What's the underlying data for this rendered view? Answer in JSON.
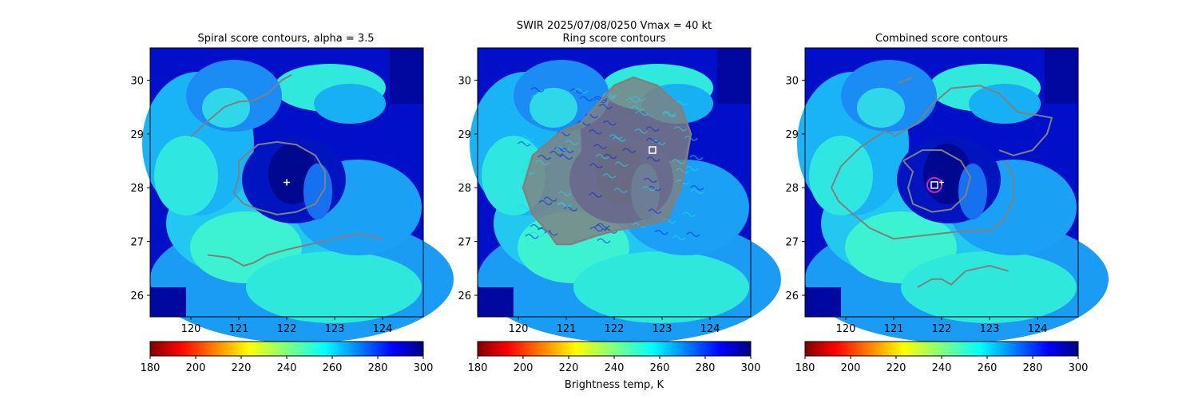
{
  "suptitle_line1": "SWIR  2025/07/08/0250    Vmax = 40 kt",
  "colorbar_label": "Brightness temp, K",
  "colors": {
    "contour": "#808080",
    "center_marker": "#ffffff",
    "circle_marker": "#cc22cc"
  },
  "chart_data": [
    {
      "type": "heatmap",
      "title": "Spiral score contours, alpha =  3.5",
      "xlim": [
        119.15,
        124.85
      ],
      "ylim": [
        25.6,
        30.6
      ],
      "x_ticks": [
        "120",
        "121",
        "122",
        "123",
        "124"
      ],
      "y_ticks": [
        "26",
        "27",
        "28",
        "29",
        "30"
      ],
      "colorbar": {
        "cmap": "jet_r",
        "range": [
          180,
          300
        ],
        "ticks": [
          "180",
          "200",
          "220",
          "240",
          "260",
          "280",
          "300"
        ]
      },
      "center_marker": {
        "type": "plus",
        "lon": 122.0,
        "lat": 28.1
      },
      "contours": [
        [
          [
            120.0,
            28.95
          ],
          [
            120.3,
            29.2
          ],
          [
            120.7,
            29.5
          ],
          [
            121.0,
            29.6
          ],
          [
            121.3,
            29.62
          ],
          [
            121.6,
            29.75
          ],
          [
            121.9,
            30.0
          ],
          [
            122.1,
            30.1
          ]
        ],
        [
          [
            121.0,
            28.5
          ],
          [
            121.4,
            28.8
          ],
          [
            121.8,
            28.85
          ],
          [
            122.2,
            28.8
          ],
          [
            122.6,
            28.6
          ],
          [
            122.8,
            28.3
          ],
          [
            122.8,
            28.0
          ],
          [
            122.6,
            27.7
          ],
          [
            122.2,
            27.55
          ],
          [
            121.8,
            27.5
          ],
          [
            121.4,
            27.6
          ],
          [
            121.1,
            27.7
          ],
          [
            120.9,
            27.9
          ],
          [
            121.0,
            28.2
          ],
          [
            121.0,
            28.5
          ]
        ],
        [
          [
            120.35,
            26.75
          ],
          [
            120.8,
            26.7
          ],
          [
            121.1,
            26.55
          ],
          [
            121.3,
            26.6
          ],
          [
            121.6,
            26.75
          ],
          [
            122.0,
            26.85
          ],
          [
            122.5,
            26.95
          ],
          [
            123.0,
            27.05
          ],
          [
            123.5,
            27.15
          ],
          [
            124.0,
            27.05
          ]
        ]
      ]
    },
    {
      "type": "heatmap",
      "title": "Ring score contours",
      "xlim": [
        119.15,
        124.85
      ],
      "ylim": [
        25.6,
        30.6
      ],
      "x_ticks": [
        "120",
        "121",
        "122",
        "123",
        "124"
      ],
      "y_ticks": [
        "26",
        "27",
        "28",
        "29",
        "30"
      ],
      "colorbar": {
        "cmap": "jet_r",
        "range": [
          180,
          300
        ],
        "ticks": [
          "180",
          "200",
          "220",
          "240",
          "260",
          "280",
          "300"
        ]
      },
      "center_marker": {
        "type": "square",
        "lon": 122.8,
        "lat": 28.7
      },
      "contour_region": [
        [
          120.3,
          27.5
        ],
        [
          120.1,
          28.0
        ],
        [
          120.3,
          28.6
        ],
        [
          120.9,
          29.05
        ],
        [
          121.3,
          29.2
        ],
        [
          121.6,
          29.5
        ],
        [
          122.0,
          29.9
        ],
        [
          122.4,
          30.05
        ],
        [
          122.9,
          29.9
        ],
        [
          123.4,
          29.5
        ],
        [
          123.6,
          29.0
        ],
        [
          123.5,
          28.5
        ],
        [
          123.4,
          28.0
        ],
        [
          123.2,
          27.6
        ],
        [
          123.1,
          27.4
        ],
        [
          122.6,
          27.3
        ],
        [
          122.0,
          27.2
        ],
        [
          121.6,
          27.1
        ],
        [
          121.1,
          26.95
        ],
        [
          120.8,
          26.95
        ],
        [
          120.6,
          27.2
        ],
        [
          120.3,
          27.5
        ]
      ]
    },
    {
      "type": "heatmap",
      "title": "Combined score contours",
      "xlim": [
        119.15,
        124.85
      ],
      "ylim": [
        25.6,
        30.6
      ],
      "x_ticks": [
        "120",
        "121",
        "122",
        "123",
        "124"
      ],
      "y_ticks": [
        "26",
        "27",
        "28",
        "29",
        "30"
      ],
      "colorbar": {
        "cmap": "jet_r",
        "range": [
          180,
          300
        ],
        "ticks": [
          "180",
          "200",
          "220",
          "240",
          "260",
          "280",
          "300"
        ]
      },
      "center_marker": {
        "type": "square",
        "lon": 121.85,
        "lat": 28.05
      },
      "circle_marker": {
        "lon": 121.85,
        "lat": 28.05
      },
      "plus_marker": {
        "lon": 122.0,
        "lat": 28.1
      },
      "contours": [
        [
          [
            121.1,
            29.95
          ],
          [
            121.4,
            30.05
          ]
        ],
        [
          [
            121.0,
            28.95
          ],
          [
            121.5,
            29.2
          ],
          [
            121.8,
            29.55
          ],
          [
            122.2,
            29.85
          ],
          [
            122.8,
            29.9
          ],
          [
            123.2,
            29.75
          ],
          [
            123.6,
            29.4
          ],
          [
            124.0,
            29.35
          ],
          [
            124.3,
            29.3
          ],
          [
            124.2,
            29.0
          ],
          [
            123.9,
            28.7
          ],
          [
            123.5,
            28.6
          ],
          [
            123.2,
            28.7
          ]
        ],
        [
          [
            123.3,
            28.5
          ],
          [
            123.5,
            28.2
          ],
          [
            123.5,
            27.8
          ],
          [
            123.3,
            27.4
          ],
          [
            123.0,
            27.2
          ],
          [
            122.5,
            27.2
          ],
          [
            122.0,
            27.15
          ],
          [
            121.5,
            27.1
          ],
          [
            121.0,
            27.05
          ],
          [
            120.5,
            27.25
          ],
          [
            120.1,
            27.55
          ],
          [
            119.85,
            27.75
          ],
          [
            119.7,
            28.0
          ],
          [
            119.9,
            28.4
          ],
          [
            120.3,
            28.75
          ],
          [
            120.8,
            29.05
          ],
          [
            121.0,
            29.0
          ]
        ],
        [
          [
            121.2,
            28.5
          ],
          [
            121.6,
            28.7
          ],
          [
            122.0,
            28.7
          ],
          [
            122.4,
            28.5
          ],
          [
            122.6,
            28.2
          ],
          [
            122.5,
            27.85
          ],
          [
            122.2,
            27.6
          ],
          [
            121.8,
            27.55
          ],
          [
            121.4,
            27.7
          ],
          [
            121.3,
            28.0
          ],
          [
            121.4,
            28.3
          ],
          [
            121.2,
            28.5
          ]
        ],
        [
          [
            121.5,
            26.15
          ],
          [
            121.8,
            26.3
          ],
          [
            122.0,
            26.3
          ],
          [
            122.2,
            26.2
          ],
          [
            122.5,
            26.45
          ],
          [
            123.0,
            26.55
          ],
          [
            123.4,
            26.45
          ]
        ]
      ]
    }
  ]
}
